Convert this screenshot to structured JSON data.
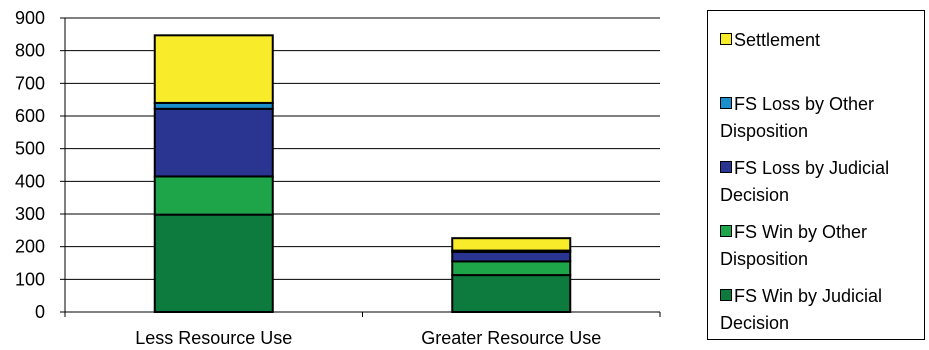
{
  "chart_data": {
    "type": "bar",
    "stacked": true,
    "categories": [
      "Less Resource Use",
      "Greater Resource Use"
    ],
    "series": [
      {
        "name": "FS Win by Judicial Decision",
        "color": "#0d7a3e",
        "values": [
          298,
          113
        ]
      },
      {
        "name": "FS Win by Other Disposition",
        "color": "#1ea449",
        "values": [
          117,
          42
        ]
      },
      {
        "name": "FS Loss by Judicial Decision",
        "color": "#2a3592",
        "values": [
          207,
          29
        ]
      },
      {
        "name": "FS Loss by Other Disposition",
        "color": "#1a8fcc",
        "values": [
          18,
          4
        ]
      },
      {
        "name": "Settlement",
        "color": "#f7eb2a",
        "values": [
          207,
          38
        ]
      }
    ],
    "ylim": [
      0,
      900
    ],
    "yticks": [
      "0",
      "100",
      "200",
      "300",
      "400",
      "500",
      "600",
      "700",
      "800",
      "900"
    ],
    "grid": true,
    "legend_position": "right"
  }
}
